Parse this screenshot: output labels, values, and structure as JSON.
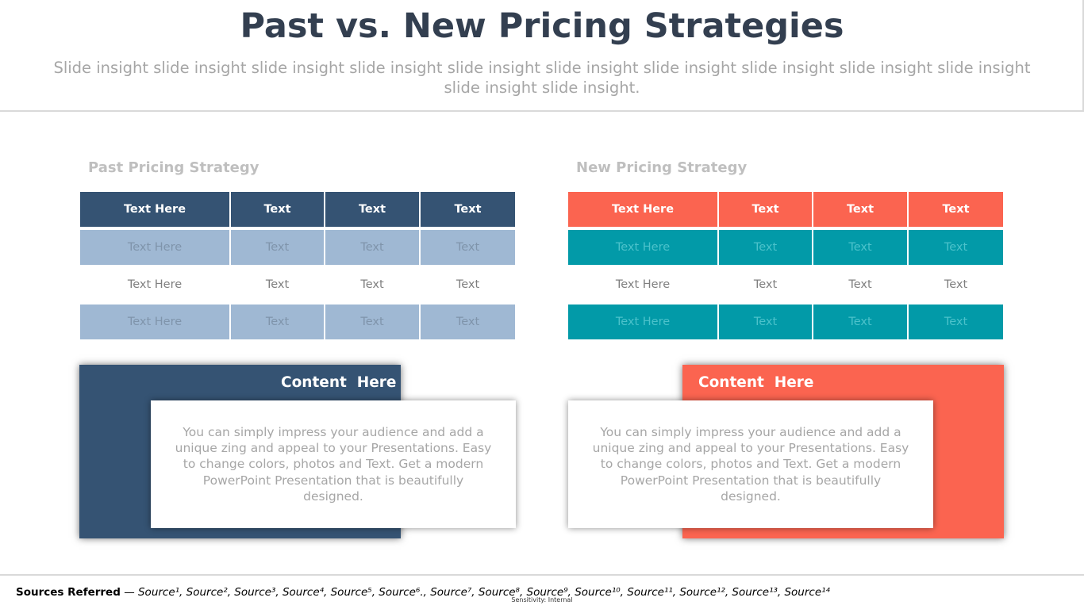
{
  "title": "Past vs. New Pricing Strategies",
  "subtitle": "Slide insight slide insight slide insight slide insight slide insight slide insight slide insight slide insight slide insight slide insight slide insight slide insight.",
  "panels": [
    {
      "heading": "Past Pricing Strategy",
      "colors": {
        "header": "#355373",
        "band": "#9fb8d3",
        "card": "#355373"
      },
      "table": {
        "header": [
          "Text Here",
          "Text",
          "Text",
          "Text"
        ],
        "rows": [
          [
            "Text Here",
            "Text",
            "Text",
            "Text"
          ],
          [
            "Text Here",
            "Text",
            "Text",
            "Text"
          ],
          [
            "Text Here",
            "Text",
            "Text",
            "Text"
          ]
        ]
      },
      "card": {
        "title": "Content  Here",
        "body": "You can simply impress your audience and add a unique zing and appeal to your Presentations. Easy to change colors, photos and Text. Get a modern PowerPoint  Presentation that is beautifully designed."
      }
    },
    {
      "heading": "New Pricing Strategy",
      "colors": {
        "header": "#fb6450",
        "band": "#029aa8",
        "card": "#fb6450"
      },
      "table": {
        "header": [
          "Text Here",
          "Text",
          "Text",
          "Text"
        ],
        "rows": [
          [
            "Text Here",
            "Text",
            "Text",
            "Text"
          ],
          [
            "Text Here",
            "Text",
            "Text",
            "Text"
          ],
          [
            "Text Here",
            "Text",
            "Text",
            "Text"
          ]
        ]
      },
      "card": {
        "title": "Content  Here",
        "body": "You can simply impress your audience and add a unique zing and appeal to your Presentations. Easy to change colors, photos and Text. Get a modern PowerPoint  Presentation that is beautifully designed."
      }
    }
  ],
  "sources": {
    "lead": "Sources Referred",
    "items": [
      "Source",
      "Source",
      "Source",
      "Source",
      "Source",
      "Source",
      "Source",
      "Source",
      "Source",
      "Source",
      "Source",
      "Source",
      "Source",
      "Source"
    ],
    "text": "Source¹, Source², Source³, Source⁴, Source⁵, Source⁶., Source⁷, Source⁸, Source⁹, Source¹⁰, Source¹¹, Source¹², Source¹³, Source¹⁴"
  },
  "sensitivity": "Sensitivity: Internal"
}
